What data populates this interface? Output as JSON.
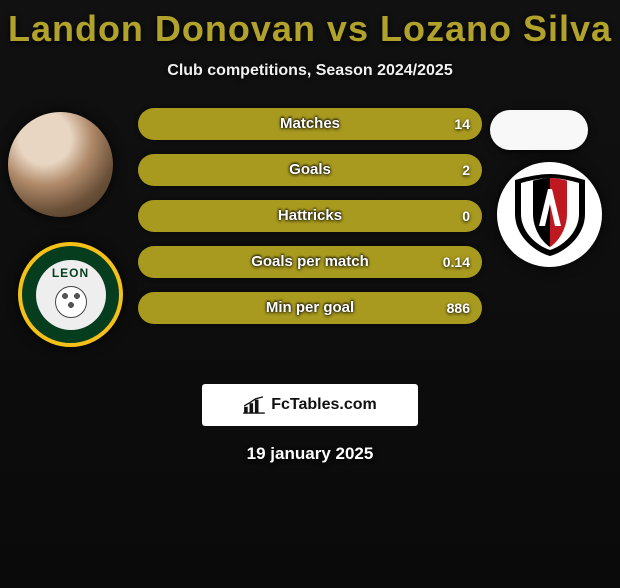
{
  "title_color": "#b1a22c",
  "title": "Landon Donovan vs Lozano Silva",
  "subtitle": "Club competitions, Season 2024/2025",
  "player_left_name": "Landon Donovan",
  "player_right_name": "Lozano Silva",
  "club_left_label": "LEON",
  "club_right_label": "Atlas",
  "bar_background": "#2a2a2a",
  "left_color": "#a89a1f",
  "right_color": "#a89a1f",
  "bars": [
    {
      "label": "Matches",
      "left_value": "",
      "right_value": "14",
      "left_pct": 0,
      "right_pct": 100
    },
    {
      "label": "Goals",
      "left_value": "",
      "right_value": "2",
      "left_pct": 0,
      "right_pct": 100
    },
    {
      "label": "Hattricks",
      "left_value": "",
      "right_value": "0",
      "left_pct": 0,
      "right_pct": 100
    },
    {
      "label": "Goals per match",
      "left_value": "",
      "right_value": "0.14",
      "left_pct": 0,
      "right_pct": 100
    },
    {
      "label": "Min per goal",
      "left_value": "",
      "right_value": "886",
      "left_pct": 0,
      "right_pct": 100
    }
  ],
  "watermark_text": "FcTables.com",
  "date": "19 january 2025",
  "shield_colors": {
    "outer": "#000000",
    "stripe": "#c01820",
    "inner": "#ffffff"
  }
}
